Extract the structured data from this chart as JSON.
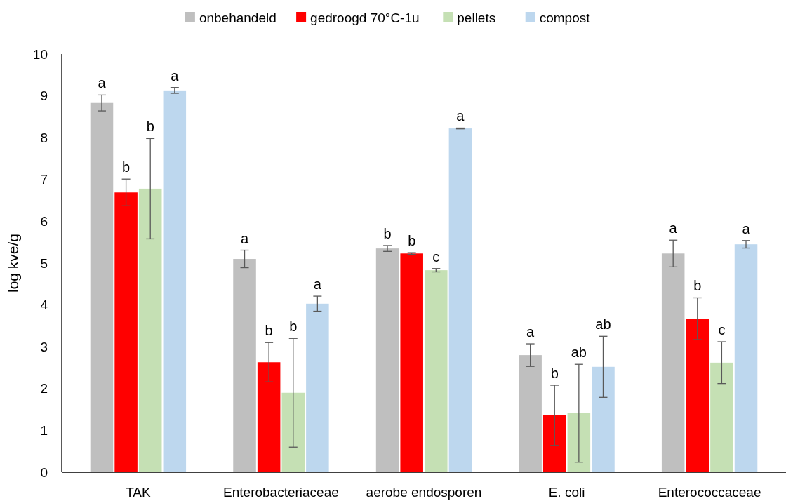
{
  "chart_data": {
    "type": "bar",
    "ylabel": "log kve/g",
    "categories": [
      "TAK",
      "Enterobacteriaceae",
      "aerobe endosporen",
      "E. coli",
      "Enterococcaceae"
    ],
    "series": [
      {
        "name": "onbehandeld",
        "color": "#bfbfbf",
        "values": [
          8.83,
          5.1,
          5.35,
          2.8,
          5.23
        ],
        "errors": [
          0.19,
          0.21,
          0.07,
          0.27,
          0.32
        ]
      },
      {
        "name": "gedroogd 70°C-1u",
        "color": "#ff0000",
        "values": [
          6.69,
          2.63,
          5.23,
          1.36,
          3.67
        ],
        "errors": [
          0.32,
          0.47,
          0.02,
          0.72,
          0.5
        ]
      },
      {
        "name": "pellets",
        "color": "#c5e0b4",
        "values": [
          6.78,
          1.9,
          4.83,
          1.41,
          2.62
        ],
        "errors": [
          1.2,
          1.3,
          0.04,
          1.17,
          0.5
        ]
      },
      {
        "name": "compost",
        "color": "#bdd7ee",
        "values": [
          9.13,
          4.03,
          8.22,
          2.52,
          5.45
        ],
        "errors": [
          0.07,
          0.18,
          0.01,
          0.73,
          0.09
        ]
      }
    ],
    "annotations": [
      "a",
      "b",
      "b",
      "a",
      "a",
      "b",
      "b",
      "a",
      "b",
      "b",
      "c",
      "a",
      "a",
      "b",
      "ab",
      "ab",
      "a",
      "b",
      "c",
      "a"
    ],
    "ylim": [
      0,
      10
    ],
    "yticks": [
      0,
      1,
      2,
      3,
      4,
      5,
      6,
      7,
      8,
      9,
      10
    ],
    "grid": false,
    "legend": "top"
  }
}
